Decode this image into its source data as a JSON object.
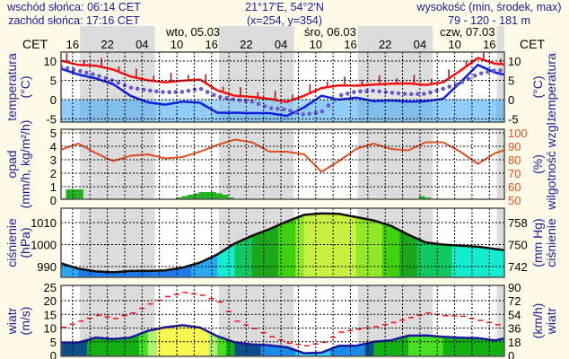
{
  "header": {
    "sunrise": "wschód słońca: 06:14 CET",
    "sunset": "zachód słońca: 17:16 CET",
    "coords": "21°17'E, 54°2'N",
    "grid_point": "(x=254,  y=354)",
    "elevation_label": "wysokość (min, środek, max)",
    "elevation_values": "79 - 120 - 181 m"
  },
  "time_axis": {
    "tz_left": "CET",
    "tz_right": "CET",
    "step_hours": 3,
    "ticks": [
      {
        "h": 2,
        "label": "16"
      },
      {
        "h": 8,
        "label": "22"
      },
      {
        "h": 14,
        "label": "04"
      },
      {
        "h": 20,
        "label": "10"
      },
      {
        "h": 26,
        "label": "16"
      },
      {
        "h": 32,
        "label": "22"
      },
      {
        "h": 38,
        "label": "04"
      },
      {
        "h": 44,
        "label": "10"
      },
      {
        "h": 50,
        "label": "16"
      },
      {
        "h": 56,
        "label": "22"
      },
      {
        "h": 62,
        "label": "04"
      },
      {
        "h": 68,
        "label": "10"
      },
      {
        "h": 74,
        "label": "16"
      }
    ],
    "days": [
      {
        "h": 22.8,
        "label": "wto, 05.03"
      },
      {
        "h": 46.5,
        "label": "śro, 06.03"
      },
      {
        "h": 70.2,
        "label": "czw, 07.03"
      }
    ],
    "night_hours": [
      [
        3.27,
        16.23
      ],
      [
        27.27,
        40.23
      ],
      [
        51.27,
        64.23
      ],
      [
        75.27,
        80
      ]
    ]
  },
  "colors": {
    "label": "#1a1a9a",
    "t_max": "#ff1010",
    "t_min": "#1020e0",
    "t_mean": "#6a5ad0",
    "humidity": "#e05020",
    "precip": "#20b020",
    "gust": "#ff1010",
    "wind_line": "#1a1aa0",
    "night": "#dcdcdc"
  },
  "chart_data": [
    {
      "type": "line",
      "id": "temperature",
      "ylabel_left": [
        "temperatura",
        "(°C)"
      ],
      "ylabel_right": [
        "(°C)",
        "temperatura"
      ],
      "ylim": [
        -5.8,
        12.3
      ],
      "yticks_left": [
        10,
        5,
        0,
        -5
      ],
      "yticks_right": [
        "10",
        "5",
        "0",
        "-5"
      ],
      "series": [
        {
          "name": "max",
          "values": [
            10.1,
            9.0,
            8.8,
            7.8,
            6.0,
            5.0,
            4.5,
            4.9,
            5.2,
            2.4,
            1.0,
            0.7,
            0.2,
            -0.6,
            1.0,
            3.0,
            3.7,
            3.6,
            3.9,
            4.1,
            4.2,
            3.8,
            4.5,
            7.5,
            10.8,
            9.3,
            9.0
          ]
        },
        {
          "name": "min",
          "values": [
            8.0,
            6.5,
            5.5,
            4.0,
            1.0,
            -0.7,
            -1.3,
            -0.5,
            -0.8,
            -3.4,
            -3.4,
            -3.5,
            -3.5,
            -4.2,
            -2.0,
            1.0,
            0.0,
            0.5,
            -0.4,
            -0.2,
            -0.5,
            -0.4,
            0.2,
            4.5,
            9.0,
            7.0,
            6.0
          ]
        },
        {
          "name": "mean",
          "values": [
            8.5,
            7.5,
            6.4,
            4.9,
            3.1,
            2.4,
            1.9,
            2.0,
            2.9,
            0.8,
            0.0,
            -0.5,
            -2.2,
            -2.6,
            -3.9,
            -3.2,
            1.0,
            2.1,
            2.3,
            1.8,
            1.4,
            1.5,
            2.8,
            4.3,
            6.6,
            7.6,
            7.6
          ]
        }
      ]
    },
    {
      "type": "bar",
      "id": "precipitation",
      "ylabel_left": [
        "opad",
        "(mm/h, kg/m²/h)"
      ],
      "ylabel_right": [
        "(%)",
        "wilgotność wzgl."
      ],
      "ylim": [
        0,
        5
      ],
      "yticks_left": [
        5,
        4,
        3,
        2,
        1,
        0
      ],
      "yticks_right": [
        "100",
        "90",
        "80",
        "70",
        "60",
        "50"
      ],
      "precip_step_hours": 1,
      "precip_mm_h": [
        0.15,
        0.8,
        0.8,
        0.8,
        0.1,
        0,
        0,
        0,
        0,
        0,
        0,
        0,
        0,
        0,
        0,
        0,
        0,
        0.1,
        0.1,
        0.1,
        0.2,
        0.3,
        0.4,
        0.5,
        0.6,
        0.6,
        0.6,
        0.5,
        0.4,
        0.2,
        0.1,
        0.05,
        0.05,
        0.05,
        0,
        0,
        0,
        0,
        0,
        0,
        0,
        0,
        0,
        0,
        0,
        0,
        0,
        0,
        0,
        0,
        0,
        0,
        0,
        0,
        0,
        0,
        0,
        0,
        0,
        0,
        0,
        0.1,
        0.3,
        0.2,
        0.05,
        0,
        0,
        0.1,
        0,
        0,
        0,
        0,
        0,
        0,
        0,
        0,
        0
      ],
      "humidity_range": [
        50,
        100
      ],
      "humidity_pct": [
        87.5,
        92,
        85,
        79,
        83,
        84,
        81,
        82,
        86,
        91,
        95,
        93,
        86,
        86,
        84,
        71,
        79,
        88,
        92,
        88,
        87,
        93,
        93,
        86,
        77,
        85,
        89
      ]
    },
    {
      "type": "area",
      "id": "pressure",
      "ylabel_left": [
        "ciśnienie",
        "(hPa)"
      ],
      "ylabel_right": [
        "(mm Hg)",
        "ciśnienie"
      ],
      "ylim": [
        985.2,
        1016.5
      ],
      "yticks_left": [
        1010,
        1000,
        990
      ],
      "yticks_right": [
        "758",
        "750",
        "742"
      ],
      "values": [
        991.5,
        989,
        987.8,
        987.4,
        988.0,
        988.0,
        988.3,
        989.5,
        991.8,
        995.5,
        1000.5,
        1004,
        1007,
        1010.5,
        1013.5,
        1014.2,
        1014,
        1012.5,
        1011,
        1008.5,
        1004.5,
        1001,
        1000,
        999.5,
        999,
        998,
        997
      ]
    },
    {
      "type": "area",
      "id": "wind",
      "ylabel_left": [
        "wiatr",
        "(m/s)"
      ],
      "ylabel_right": [
        "(km/h)",
        "wiatr"
      ],
      "ylim": [
        0,
        25.7
      ],
      "yticks_left": [
        25,
        20,
        15,
        10,
        5,
        0
      ],
      "yticks_right": [
        "90",
        "72",
        "54",
        "36",
        "18",
        "0"
      ],
      "speed": [
        4.7,
        4.7,
        6.5,
        6.0,
        6.5,
        9.0,
        10.3,
        11.0,
        10.2,
        7.0,
        4.8,
        4.0,
        3.7,
        3.0,
        0.8,
        1.0,
        3.5,
        3.5,
        5.0,
        5.5,
        7.2,
        7.3,
        6.8,
        6.5,
        6.3,
        5.5,
        6.8
      ],
      "gusts": [
        10.3,
        12.5,
        14.6,
        13.5,
        15.5,
        18.8,
        21.5,
        23.0,
        22.0,
        19.5,
        12.5,
        9.8,
        6.8,
        4.5,
        3.5,
        4.8,
        8.5,
        9.6,
        10.5,
        12.0,
        13.8,
        15.5,
        14.5,
        14.3,
        12.8,
        11.2,
        13.8
      ]
    }
  ]
}
